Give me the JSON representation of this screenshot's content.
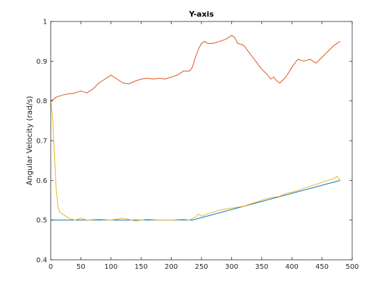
{
  "chart_data": {
    "type": "line",
    "title": "Y-axis",
    "xlabel": "",
    "ylabel": "Angular Velocity (rad/s)",
    "xlim": [
      0,
      500
    ],
    "ylim": [
      0.4,
      1
    ],
    "xticks": [
      0,
      50,
      100,
      150,
      200,
      250,
      300,
      350,
      400,
      450,
      500
    ],
    "xtick_labels": [
      "0",
      "50",
      "100",
      "150",
      "200",
      "250",
      "300",
      "350",
      "400",
      "450",
      "500"
    ],
    "yticks": [
      0.4,
      0.5,
      0.6,
      0.7,
      0.8,
      0.9,
      1
    ],
    "ytick_labels": [
      "0.4",
      "0.5",
      "0.6",
      "0.7",
      "0.8",
      "0.9",
      "1"
    ],
    "grid": false,
    "legend": "none",
    "series": [
      {
        "color": "#0072BD",
        "x": [
          0,
          235,
          480
        ],
        "y": [
          0.5,
          0.5,
          0.6
        ]
      },
      {
        "color": "#D95319",
        "x": [
          0,
          10,
          20,
          30,
          40,
          50,
          60,
          70,
          80,
          90,
          100,
          110,
          120,
          130,
          140,
          150,
          160,
          170,
          180,
          190,
          200,
          210,
          220,
          230,
          235,
          240,
          245,
          250,
          255,
          260,
          270,
          280,
          290,
          300,
          305,
          310,
          320,
          330,
          340,
          350,
          360,
          365,
          370,
          375,
          380,
          390,
          400,
          410,
          420,
          430,
          440,
          450,
          460,
          470,
          480
        ],
        "y": [
          0.8,
          0.81,
          0.815,
          0.818,
          0.82,
          0.825,
          0.82,
          0.83,
          0.845,
          0.855,
          0.865,
          0.855,
          0.845,
          0.843,
          0.85,
          0.855,
          0.857,
          0.855,
          0.857,
          0.855,
          0.86,
          0.865,
          0.875,
          0.875,
          0.885,
          0.91,
          0.93,
          0.945,
          0.95,
          0.945,
          0.945,
          0.95,
          0.955,
          0.965,
          0.96,
          0.945,
          0.94,
          0.92,
          0.9,
          0.88,
          0.865,
          0.855,
          0.86,
          0.85,
          0.845,
          0.86,
          0.885,
          0.905,
          0.9,
          0.905,
          0.895,
          0.91,
          0.925,
          0.94,
          0.95
        ]
      },
      {
        "color": "#EDB120",
        "x": [
          0,
          3,
          6,
          9,
          12,
          15,
          20,
          25,
          30,
          40,
          50,
          60,
          80,
          100,
          120,
          140,
          160,
          180,
          200,
          220,
          230,
          240,
          245,
          250,
          260,
          270,
          280,
          290,
          300,
          320,
          340,
          360,
          380,
          390,
          400,
          410,
          420,
          430,
          440,
          450,
          460,
          470,
          475,
          480
        ],
        "y": [
          0.8,
          0.76,
          0.67,
          0.58,
          0.535,
          0.52,
          0.515,
          0.51,
          0.505,
          0.5,
          0.505,
          0.5,
          0.502,
          0.5,
          0.505,
          0.498,
          0.502,
          0.5,
          0.5,
          0.502,
          0.5,
          0.508,
          0.515,
          0.51,
          0.516,
          0.52,
          0.525,
          0.528,
          0.53,
          0.535,
          0.545,
          0.555,
          0.56,
          0.567,
          0.57,
          0.575,
          0.58,
          0.585,
          0.59,
          0.595,
          0.6,
          0.605,
          0.61,
          0.6
        ]
      }
    ]
  }
}
